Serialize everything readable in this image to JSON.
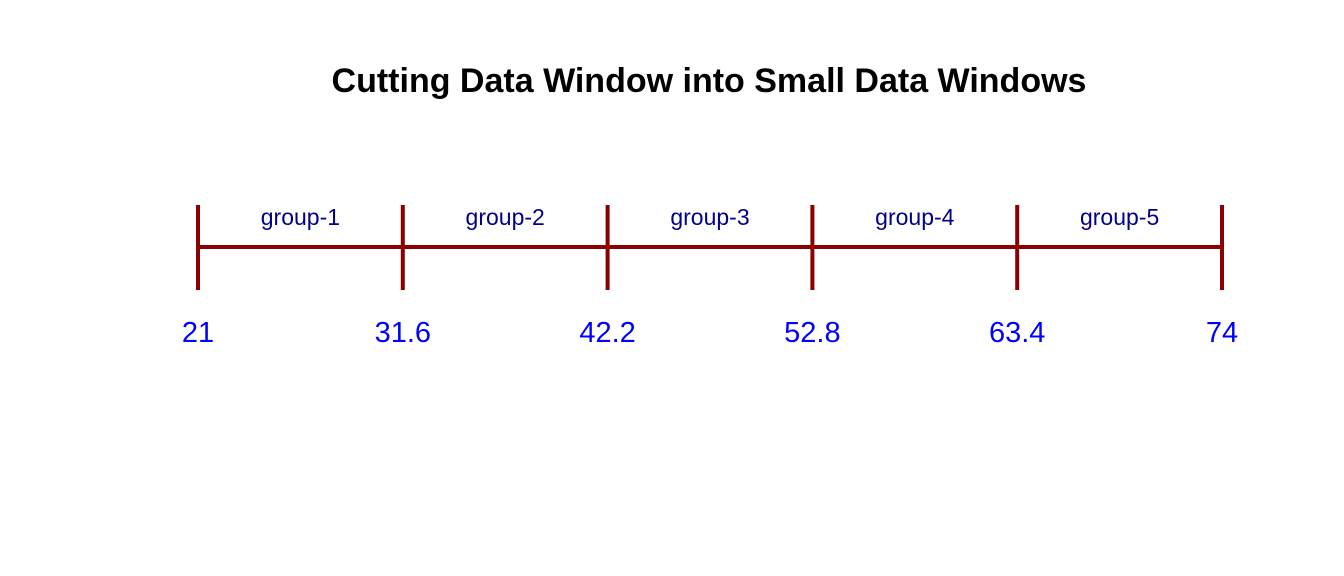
{
  "title": "Cutting Data Window into Small Data Windows",
  "colors": {
    "line": "#8b0000",
    "group_label": "#00008b",
    "tick_label": "#0000ff",
    "title": "#000000",
    "background": "#ffffff"
  },
  "chart_data": {
    "type": "number-line",
    "title": "Cutting Data Window into Small Data Windows",
    "range": [
      21,
      74
    ],
    "breaks": [
      "21",
      "31.6",
      "42.2",
      "52.8",
      "63.4",
      "74"
    ],
    "break_values": [
      21,
      31.6,
      42.2,
      52.8,
      63.4,
      74
    ],
    "groups": [
      "group-1",
      "group-2",
      "group-3",
      "group-4",
      "group-5"
    ]
  }
}
